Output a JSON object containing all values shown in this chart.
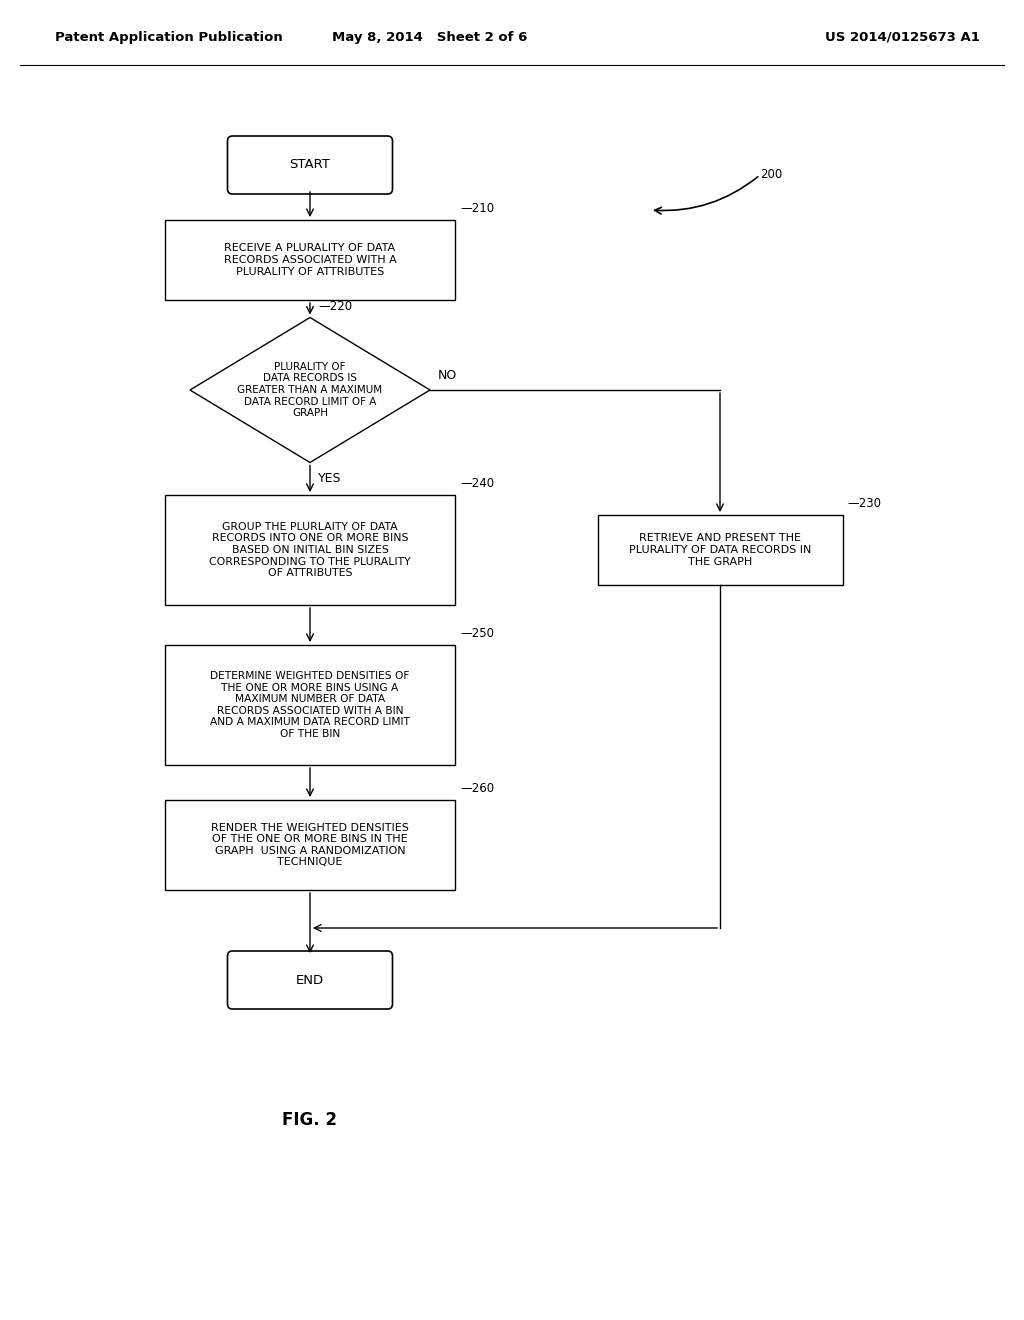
{
  "header_left": "Patent Application Publication",
  "header_mid": "May 8, 2014   Sheet 2 of 6",
  "header_right": "US 2014/0125673 A1",
  "fig_label": "FIG. 2",
  "bg_color": "#ffffff",
  "line_color": "#000000",
  "text_color": "#000000",
  "font_size_node": 8.0,
  "font_size_header": 9.5,
  "font_size_ref": 8.5,
  "font_size_terminal": 9.5
}
